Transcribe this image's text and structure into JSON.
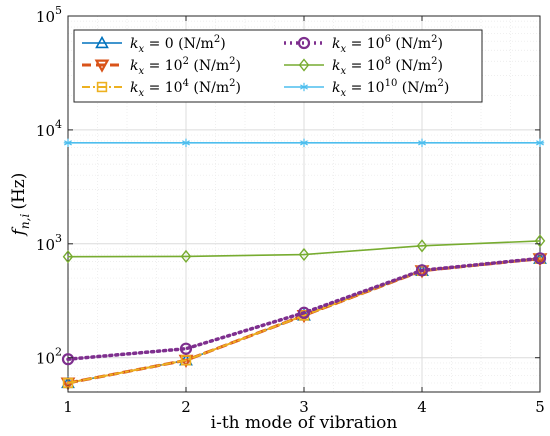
{
  "chart_data": {
    "type": "line",
    "title": "",
    "xlabel": "i-th mode of vibration",
    "ylabel_main": "f",
    "ylabel_sub": "n,i",
    "ylabel_unit": "(Hz)",
    "x": [
      1,
      2,
      3,
      4,
      5
    ],
    "xlim": [
      1,
      5
    ],
    "ylim": [
      50,
      100000
    ],
    "y_scale": "log",
    "x_ticks": [
      "1",
      "2",
      "3",
      "4",
      "5"
    ],
    "y_ticks": [
      {
        "value": 100,
        "base": "10",
        "exp": "2"
      },
      {
        "value": 1000,
        "base": "10",
        "exp": "3"
      },
      {
        "value": 10000,
        "base": "10",
        "exp": "4"
      },
      {
        "value": 100000,
        "base": "10",
        "exp": "5"
      }
    ],
    "grid": true,
    "legend_placement": "top-left",
    "series": [
      {
        "name": "k_x = 0 (N/m^2)",
        "legend_prefix": "k",
        "legend_sub": "x",
        "legend_value": "= 0 (N/m",
        "legend_exp": "2",
        "legend_suffix": ")",
        "values": [
          60,
          95,
          235,
          580,
          740
        ],
        "color": "#0072BD",
        "dash": "",
        "width": 1.6,
        "marker": "triangle-up"
      },
      {
        "name": "k_x = 10^2 (N/m^2)",
        "legend_prefix": "k",
        "legend_sub": "x",
        "legend_value": "= 10",
        "legend_value_exp": "2",
        "legend_unit": " (N/m",
        "legend_exp": "2",
        "legend_suffix": ")",
        "values": [
          60,
          95,
          235,
          580,
          740
        ],
        "color": "#D95319",
        "dash": "9,5",
        "width": 3,
        "marker": "triangle-down"
      },
      {
        "name": "k_x = 10^4 (N/m^2)",
        "legend_prefix": "k",
        "legend_sub": "x",
        "legend_value": "= 10",
        "legend_value_exp": "4",
        "legend_unit": " (N/m",
        "legend_exp": "2",
        "legend_suffix": ")",
        "values": [
          60,
          95,
          235,
          580,
          740
        ],
        "color": "#EDB120",
        "dash": "8,3,2,3",
        "width": 2,
        "marker": "square"
      },
      {
        "name": "k_x = 10^6 (N/m^2)",
        "legend_prefix": "k",
        "legend_sub": "x",
        "legend_value": "= 10",
        "legend_value_exp": "6",
        "legend_unit": " (N/m",
        "legend_exp": "2",
        "legend_suffix": ")",
        "values": [
          97,
          120,
          248,
          585,
          745
        ],
        "color": "#7E2F8E",
        "dash": "2,4",
        "width": 3.5,
        "marker": "circle"
      },
      {
        "name": "k_x = 10^8 (N/m^2)",
        "legend_prefix": "k",
        "legend_sub": "x",
        "legend_value": "= 10",
        "legend_value_exp": "8",
        "legend_unit": " (N/m",
        "legend_exp": "2",
        "legend_suffix": ")",
        "values": [
          770,
          775,
          805,
          960,
          1060
        ],
        "color": "#77AC30",
        "dash": "",
        "width": 1.6,
        "marker": "diamond"
      },
      {
        "name": "k_x = 10^10 (N/m^2)",
        "legend_prefix": "k",
        "legend_sub": "x",
        "legend_value": "= 10",
        "legend_value_exp": "10",
        "legend_unit": " (N/m",
        "legend_exp": "2",
        "legend_suffix": ")",
        "values": [
          7700,
          7700,
          7700,
          7700,
          7700
        ],
        "color": "#4DBEEE",
        "dash": "",
        "width": 1.6,
        "marker": "asterisk"
      }
    ]
  }
}
